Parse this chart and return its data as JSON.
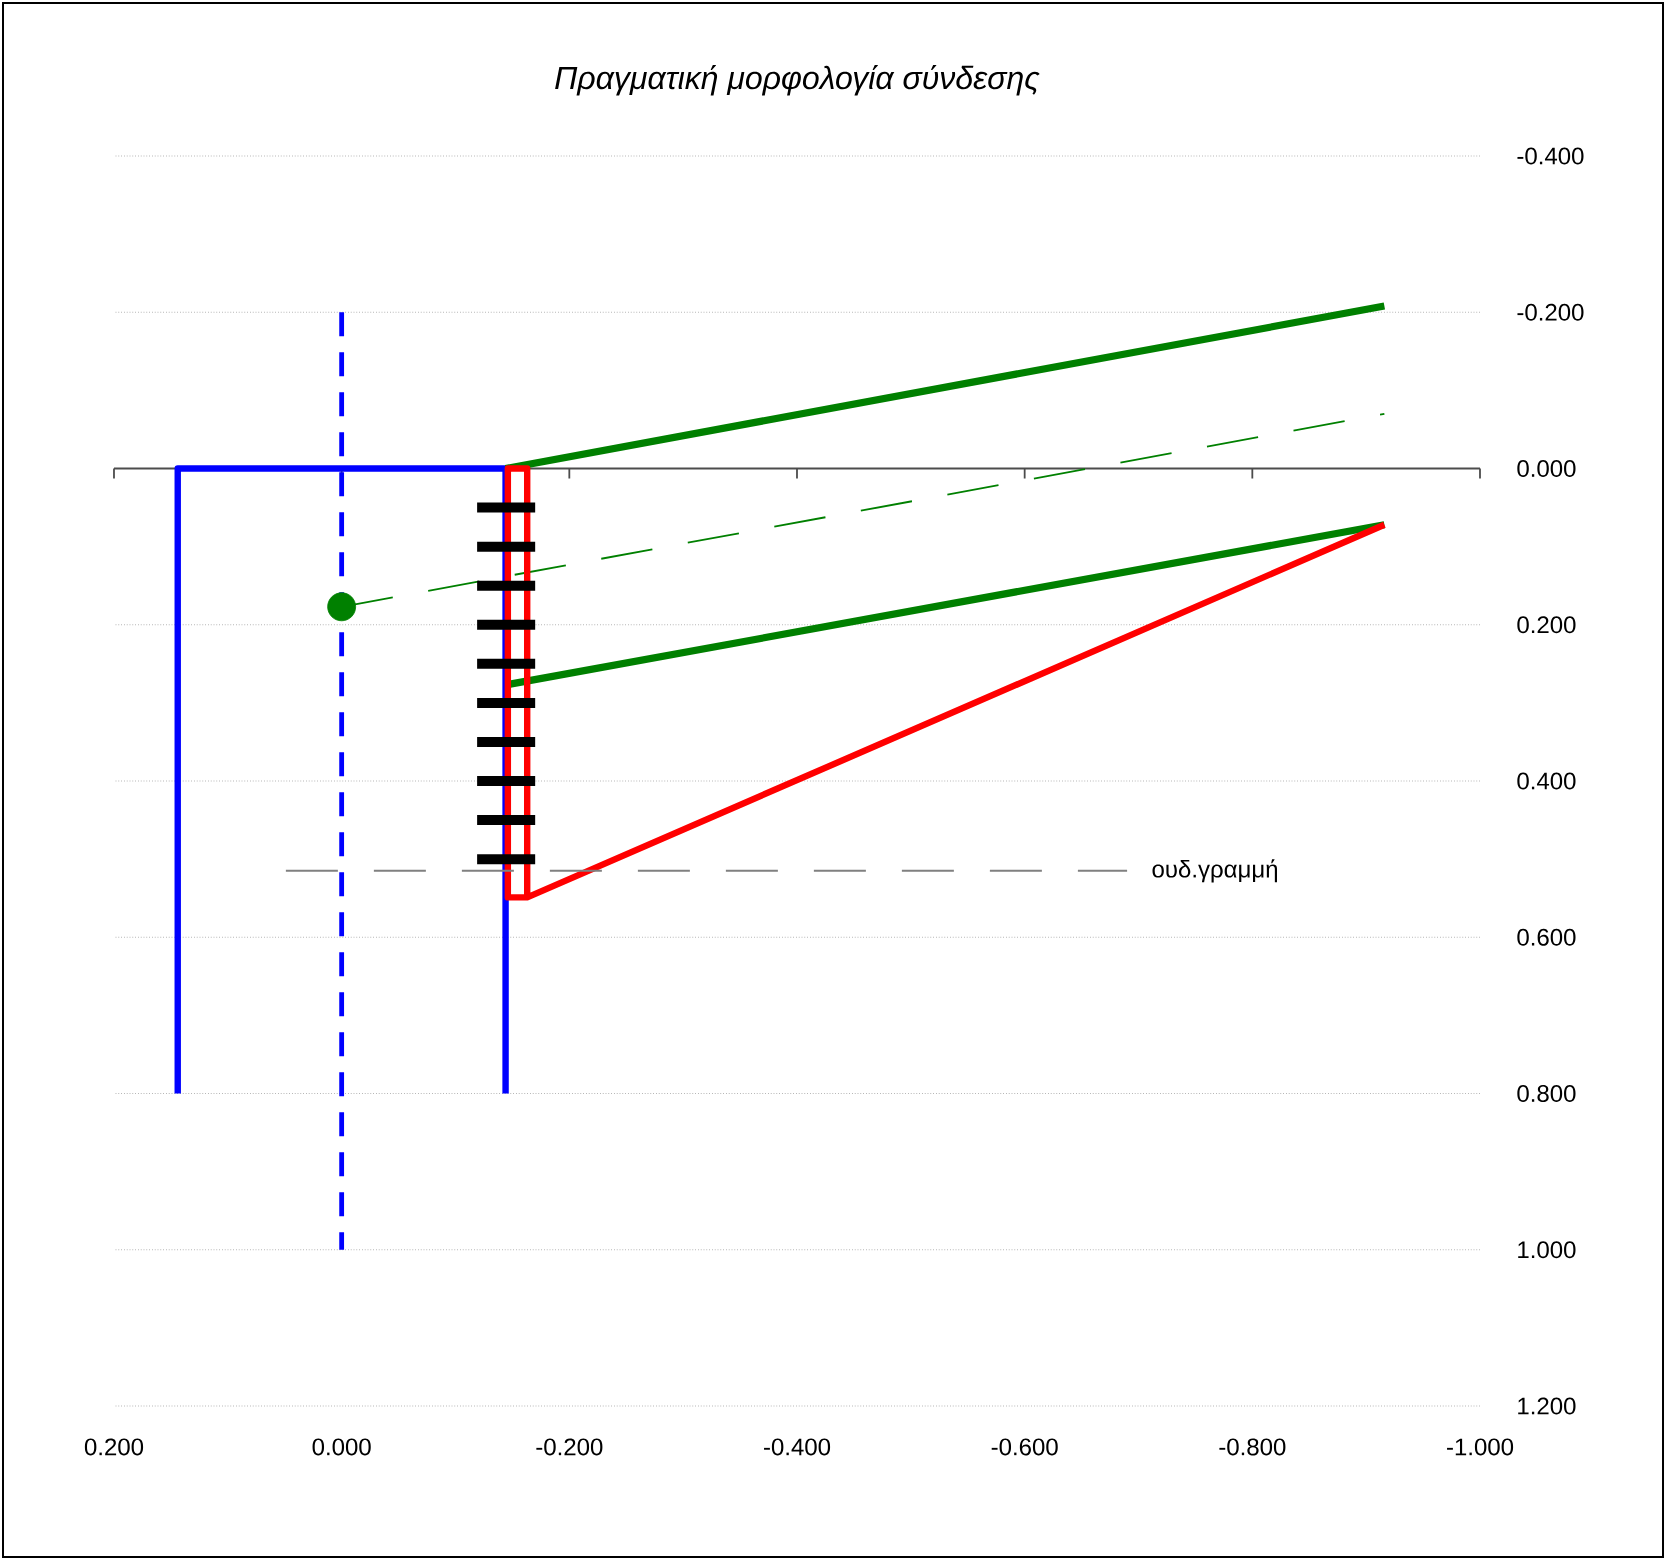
{
  "chart_data": {
    "type": "line",
    "title": "Πραγματική μορφολογία σύνδεσης",
    "xlim": [
      0.2,
      -1.0
    ],
    "xticks": [
      {
        "value": 0.2,
        "label": "0.200"
      },
      {
        "value": 0.0,
        "label": "0.000"
      },
      {
        "value": -0.2,
        "label": "-0.200"
      },
      {
        "value": -0.4,
        "label": "-0.400"
      },
      {
        "value": -0.6,
        "label": "-0.600"
      },
      {
        "value": -0.8,
        "label": "-0.800"
      },
      {
        "value": -1.0,
        "label": "-1.000"
      }
    ],
    "ylim": [
      1.2,
      -0.4
    ],
    "yticks": [
      {
        "value": -0.4,
        "label": "-0.400"
      },
      {
        "value": -0.2,
        "label": "-0.200"
      },
      {
        "value": 0.0,
        "label": "0.000"
      },
      {
        "value": 0.2,
        "label": "0.200"
      },
      {
        "value": 0.4,
        "label": "0.400"
      },
      {
        "value": 0.6,
        "label": "0.600"
      },
      {
        "value": 0.8,
        "label": "0.800"
      },
      {
        "value": 1.0,
        "label": "1.000"
      },
      {
        "value": 1.2,
        "label": "1.200"
      }
    ],
    "grid": "y",
    "legend": false,
    "marker": "none",
    "series": [
      {
        "color": "#0000ff",
        "line_style": "solid",
        "x": [
          0.144,
          0.144,
          -0.144,
          -0.144
        ],
        "values": [
          0.8,
          0.0,
          0.0,
          0.8
        ]
      },
      {
        "color": "#0000ff",
        "line_style": "dashed",
        "x": [
          0.0,
          0.0
        ],
        "values": [
          -0.2,
          1.0
        ]
      },
      {
        "color": "#008000",
        "line_style": "solid",
        "x": [
          -0.144,
          -0.916
        ],
        "values": [
          0.0,
          -0.208
        ]
      },
      {
        "color": "#008000",
        "line_style": "solid",
        "x": [
          -0.144,
          -0.916
        ],
        "values": [
          0.277,
          0.072
        ]
      },
      {
        "color": "#008000",
        "line_style": "dashed",
        "x": [
          0.0,
          -0.916
        ],
        "values": [
          0.177,
          -0.07
        ]
      },
      {
        "color": "#ff0000",
        "line_style": "solid",
        "x": [
          -0.916,
          -0.163,
          -0.146,
          -0.146,
          -0.163,
          -0.163
        ],
        "values": [
          0.072,
          0.549,
          0.549,
          0.0,
          0.0,
          0.549
        ]
      },
      {
        "color": "#000000",
        "line_style": "solid",
        "x": [
          -0.119,
          -0.17
        ],
        "values": [
          0.05,
          0.05
        ]
      },
      {
        "color": "#000000",
        "line_style": "solid",
        "x": [
          -0.119,
          -0.17
        ],
        "values": [
          0.1,
          0.1
        ]
      },
      {
        "color": "#000000",
        "line_style": "solid",
        "x": [
          -0.119,
          -0.17
        ],
        "values": [
          0.15,
          0.15
        ]
      },
      {
        "color": "#000000",
        "line_style": "solid",
        "x": [
          -0.119,
          -0.17
        ],
        "values": [
          0.2,
          0.2
        ]
      },
      {
        "color": "#000000",
        "line_style": "solid",
        "x": [
          -0.119,
          -0.17
        ],
        "values": [
          0.25,
          0.25
        ]
      },
      {
        "color": "#000000",
        "line_style": "solid",
        "x": [
          -0.119,
          -0.17
        ],
        "values": [
          0.3,
          0.3
        ]
      },
      {
        "color": "#000000",
        "line_style": "solid",
        "x": [
          -0.119,
          -0.17
        ],
        "values": [
          0.35,
          0.35
        ]
      },
      {
        "color": "#000000",
        "line_style": "solid",
        "x": [
          -0.119,
          -0.17
        ],
        "values": [
          0.4,
          0.4
        ]
      },
      {
        "color": "#000000",
        "line_style": "solid",
        "x": [
          -0.119,
          -0.17
        ],
        "values": [
          0.45,
          0.45
        ]
      },
      {
        "color": "#000000",
        "line_style": "solid",
        "x": [
          -0.119,
          -0.17
        ],
        "values": [
          0.5,
          0.5
        ]
      },
      {
        "name": "ουδ.γραμμή",
        "color": "#808080",
        "line_style": "dashed",
        "x": [
          0.049,
          -0.69
        ],
        "values": [
          0.515,
          0.515
        ]
      },
      {
        "type": "scatter",
        "color": "#008000",
        "marker": "circle",
        "x": [
          0.0
        ],
        "values": [
          0.177
        ]
      }
    ]
  }
}
